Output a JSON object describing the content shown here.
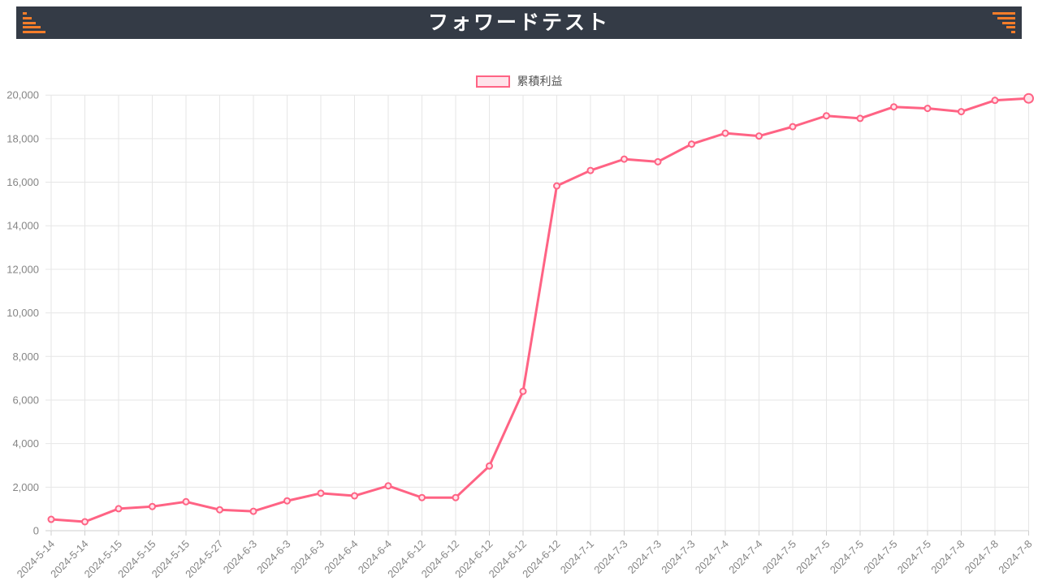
{
  "header": {
    "title": "フォワードテスト",
    "colors": {
      "background": "#343b46",
      "title": "#ffffff",
      "accent_orange": "#f57d2a"
    }
  },
  "legend": {
    "label": "累積利益",
    "swatch_border": "#ff6384",
    "swatch_fill": "#ffe3ea"
  },
  "chart_data": {
    "type": "line",
    "title": "フォワードテスト",
    "legend_position": "top",
    "grid": true,
    "x_categories": [
      "2024-5-14",
      "2024-5-14",
      "2024-5-15",
      "2024-5-15",
      "2024-5-15",
      "2024-5-27",
      "2024-6-3",
      "2024-6-3",
      "2024-6-3",
      "2024-6-4",
      "2024-6-4",
      "2024-6-12",
      "2024-6-12",
      "2024-6-12",
      "2024-6-12",
      "2024-6-12",
      "2024-7-1",
      "2024-7-3",
      "2024-7-3",
      "2024-7-3",
      "2024-7-4",
      "2024-7-4",
      "2024-7-5",
      "2024-7-5",
      "2024-7-5",
      "2024-7-5",
      "2024-7-5",
      "2024-7-8",
      "2024-7-8",
      "2024-7-8"
    ],
    "series": [
      {
        "name": "累積利益",
        "line_color": "#ff6384",
        "point_fill": "#ffe3ea",
        "values": [
          520,
          410,
          1010,
          1110,
          1330,
          960,
          890,
          1370,
          1720,
          1600,
          2060,
          1520,
          1520,
          2970,
          6400,
          15830,
          16540,
          17060,
          16940,
          17750,
          18250,
          18120,
          18550,
          19050,
          18930,
          19460,
          19390,
          19240,
          19760,
          19850
        ]
      }
    ],
    "ylim": [
      0,
      20000
    ],
    "ytick_step": 2000,
    "ytick_labels": [
      "0",
      "2,000",
      "4,000",
      "6,000",
      "8,000",
      "10,000",
      "12,000",
      "14,000",
      "16,000",
      "18,000",
      "20,000"
    ],
    "axis_label_color": "#858585",
    "gridline_color": "#e6e6e6",
    "axis_line_color": "#cfcfcf"
  }
}
